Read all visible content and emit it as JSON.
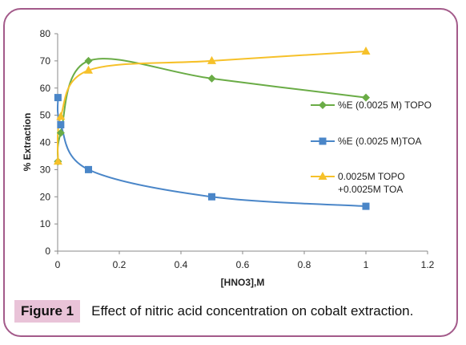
{
  "chart_data": {
    "type": "line",
    "xlabel": "[HNO3],M",
    "ylabel": "% Extraction",
    "xlim": [
      0,
      1.2
    ],
    "ylim": [
      0,
      80
    ],
    "xticks": [
      0,
      0.2,
      0.4,
      0.6,
      0.8,
      1,
      1.2
    ],
    "xtick_labels": [
      "0",
      "0.2",
      "0.4",
      "0.6",
      "0.8",
      "1",
      "1.2"
    ],
    "yticks": [
      0,
      10,
      20,
      30,
      40,
      50,
      60,
      70,
      80
    ],
    "yticks_labels": [
      "0",
      "10",
      "20",
      "30",
      "40",
      "50",
      "60",
      "70",
      "80"
    ],
    "grid": false,
    "legend_position": "right",
    "series": [
      {
        "name": "%E (0.0025 M) TOPO",
        "color": "#6aac46",
        "marker": "diamond",
        "x": [
          0.001,
          0.01,
          0.1,
          0.5,
          1.0
        ],
        "y": [
          33,
          43.5,
          70,
          63.5,
          56.5
        ]
      },
      {
        "name": "%E (0.0025 M)TOA",
        "color": "#4a86c8",
        "marker": "square",
        "x": [
          0.001,
          0.01,
          0.1,
          0.5,
          1.0
        ],
        "y": [
          56.5,
          46.5,
          30,
          20,
          16.5
        ]
      },
      {
        "name": "0.0025M TOPO +0.0025M TOA",
        "name_lines": [
          "0.0025M TOPO",
          "+0.0025M TOA"
        ],
        "color": "#f6c12a",
        "marker": "triangle",
        "x": [
          0.001,
          0.01,
          0.1,
          0.5,
          1.0
        ],
        "y": [
          33,
          49.5,
          66.5,
          70,
          73.5
        ]
      }
    ]
  },
  "caption": {
    "label": "Figure 1",
    "text": "Effect of nitric acid concentration on cobalt extraction."
  }
}
